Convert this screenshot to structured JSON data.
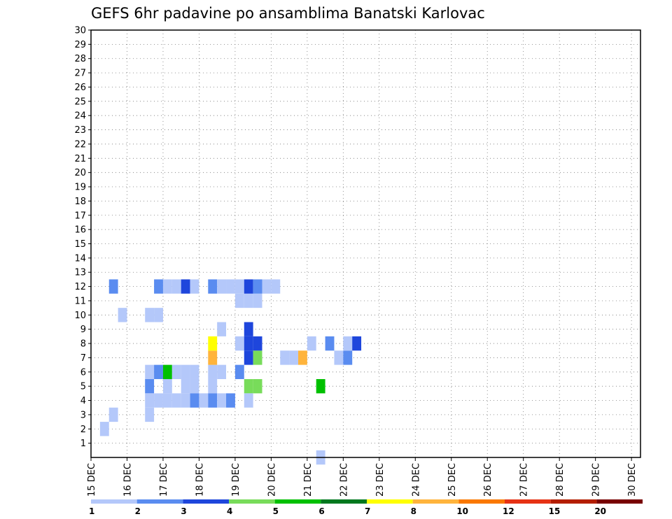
{
  "chart_data": {
    "type": "heatmap",
    "title": "GEFS 6hr padavine po ansamblima Banatski Karlovac",
    "x_tick_labels": [
      "15 DEC",
      "16 DEC",
      "17 DEC",
      "18 DEC",
      "19 DEC",
      "20 DEC",
      "21 DEC",
      "22 DEC",
      "23 DEC",
      "24 DEC",
      "25 DEC",
      "26 DEC",
      "27 DEC",
      "28 DEC",
      "29 DEC",
      "30 DEC"
    ],
    "y_tick_labels": [
      "1",
      "2",
      "3",
      "4",
      "5",
      "6",
      "7",
      "8",
      "9",
      "10",
      "11",
      "12",
      "13",
      "14",
      "15",
      "16",
      "17",
      "18",
      "19",
      "20",
      "21",
      "22",
      "23",
      "24",
      "25",
      "26",
      "27",
      "28",
      "29",
      "30"
    ],
    "xlim": [
      0,
      61
    ],
    "ylim": [
      0,
      30
    ],
    "grid": true,
    "legend": {
      "labels": [
        "1",
        "2",
        "3",
        "4",
        "5",
        "6",
        "7",
        "8",
        "10",
        "12",
        "15",
        "20"
      ],
      "colors": [
        "#b4c8fa",
        "#5a8cf0",
        "#1e46dc",
        "#78dc5a",
        "#00c000",
        "#00781e",
        "#ffff00",
        "#ffb43c",
        "#fa7800",
        "#e63214",
        "#b41e00",
        "#780000"
      ]
    },
    "cells": [
      [
        25,
        0,
        1
      ],
      [
        6,
        5,
        2
      ],
      [
        8,
        5,
        1
      ],
      [
        10,
        5,
        1
      ],
      [
        11,
        5,
        1
      ],
      [
        13,
        5,
        1
      ],
      [
        17,
        5,
        4
      ],
      [
        18,
        5,
        4
      ],
      [
        25,
        5,
        5
      ],
      [
        25,
        5,
        6
      ],
      [
        25,
        5,
        1
      ],
      [
        25,
        5,
        9
      ],
      [
        6,
        6,
        1
      ],
      [
        7,
        6,
        2
      ],
      [
        7,
        6,
        1
      ],
      [
        7,
        6,
        2
      ],
      [
        8,
        6,
        5
      ],
      [
        8,
        6,
        6
      ],
      [
        8,
        6,
        1
      ],
      [
        8,
        6,
        2
      ],
      [
        8,
        6,
        1
      ],
      [
        9,
        6,
        1
      ],
      [
        9,
        6,
        3
      ],
      [
        10,
        6,
        1
      ],
      [
        11,
        6,
        1
      ],
      [
        13,
        6,
        1
      ],
      [
        14,
        6,
        1
      ],
      [
        16,
        6,
        2
      ],
      [
        16,
        6,
        7
      ],
      [
        16,
        6,
        1
      ],
      [
        13,
        7,
        8
      ],
      [
        17,
        7,
        3
      ],
      [
        17,
        7,
        2
      ],
      [
        17,
        7,
        9
      ],
      [
        17,
        7,
        12
      ],
      [
        18,
        7,
        4
      ],
      [
        18,
        7,
        3
      ],
      [
        18,
        7,
        1
      ],
      [
        21,
        7,
        1
      ],
      [
        22,
        7,
        1
      ],
      [
        23,
        7,
        8
      ],
      [
        23,
        7,
        9
      ],
      [
        27,
        7,
        1
      ],
      [
        28,
        7,
        2
      ],
      [
        28,
        7,
        1
      ],
      [
        28,
        7,
        3
      ],
      [
        13,
        8,
        7
      ],
      [
        16,
        8,
        1
      ],
      [
        16,
        8,
        4
      ],
      [
        17,
        8,
        3
      ],
      [
        17,
        8,
        8
      ],
      [
        17,
        8,
        12
      ],
      [
        18,
        8,
        3
      ],
      [
        18,
        8,
        9
      ],
      [
        24,
        8,
        1
      ],
      [
        26,
        8,
        2
      ],
      [
        28,
        8,
        1
      ],
      [
        28,
        8,
        2
      ],
      [
        29,
        8,
        3
      ],
      [
        29,
        8,
        1
      ],
      [
        2,
        3,
        1
      ],
      [
        7,
        4,
        1
      ],
      [
        8,
        4,
        1
      ],
      [
        8,
        4,
        1
      ],
      [
        8,
        4,
        1
      ],
      [
        9,
        4,
        1
      ],
      [
        9,
        4,
        1
      ],
      [
        10,
        4,
        1
      ],
      [
        11,
        4,
        2
      ],
      [
        12,
        4,
        1
      ],
      [
        12,
        4,
        1
      ],
      [
        13,
        4,
        2
      ],
      [
        14,
        4,
        1
      ],
      [
        15,
        4,
        2
      ],
      [
        15,
        4,
        1
      ],
      [
        17,
        4,
        1
      ],
      [
        14,
        9,
        1
      ],
      [
        17,
        9,
        3
      ],
      [
        3,
        10,
        1
      ],
      [
        6,
        10,
        1
      ],
      [
        6,
        10,
        2
      ],
      [
        7,
        10,
        1
      ],
      [
        16,
        11,
        1
      ],
      [
        16,
        11,
        1
      ],
      [
        17,
        11,
        1
      ],
      [
        17,
        11,
        1
      ],
      [
        18,
        11,
        1
      ],
      [
        18,
        11,
        1
      ],
      [
        18,
        11,
        1
      ],
      [
        18,
        11,
        1
      ],
      [
        18,
        11,
        1
      ],
      [
        18,
        11,
        1
      ],
      [
        18,
        11,
        1
      ],
      [
        2,
        12,
        2
      ],
      [
        7,
        12,
        2
      ],
      [
        8,
        12,
        1
      ],
      [
        9,
        12,
        1
      ],
      [
        10,
        12,
        3
      ],
      [
        11,
        12,
        1
      ],
      [
        13,
        12,
        2
      ],
      [
        14,
        12,
        1
      ],
      [
        15,
        12,
        1
      ],
      [
        15,
        12,
        1
      ],
      [
        16,
        12,
        1
      ],
      [
        16,
        12,
        1
      ],
      [
        17,
        12,
        3
      ],
      [
        18,
        12,
        2
      ],
      [
        18,
        12,
        1
      ],
      [
        19,
        12,
        1
      ],
      [
        19,
        12,
        1
      ],
      [
        20,
        12,
        1
      ],
      [
        20,
        12,
        1
      ]
    ],
    "extra_cells": [
      [
        6,
        4,
        1
      ],
      [
        6,
        3,
        1
      ],
      [
        1,
        2,
        1
      ]
    ]
  }
}
